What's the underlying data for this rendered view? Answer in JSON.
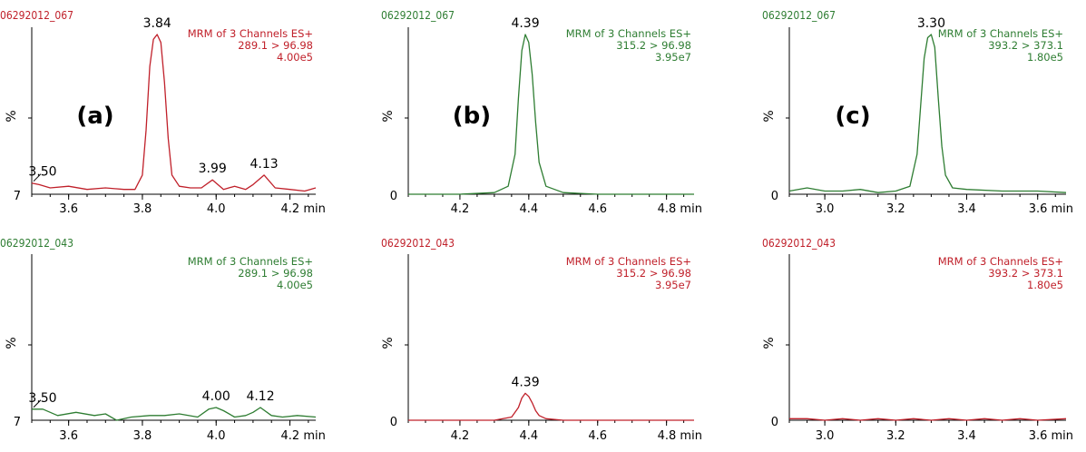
{
  "chart_data": [
    {
      "type": "line",
      "panel": "a",
      "row": "top",
      "panel_label": "(a)",
      "sample_id": "06292012_067",
      "color": "#c0202a",
      "info": [
        "MRM of 3 Channels ES+",
        "289.1 > 96.98",
        "4.00e5"
      ],
      "ylabel": "%",
      "y_axis_bottom_label": "7",
      "x_unit": "min",
      "xlim": [
        3.5,
        4.27
      ],
      "ylim": [
        0,
        100
      ],
      "xticks": [
        3.6,
        3.8,
        4.0,
        4.2
      ],
      "xtick_labels": [
        "3.6",
        "3.8",
        "4.0",
        "4.2 min"
      ],
      "x": [
        3.5,
        3.52,
        3.55,
        3.6,
        3.65,
        3.7,
        3.75,
        3.78,
        3.8,
        3.81,
        3.82,
        3.83,
        3.84,
        3.85,
        3.86,
        3.87,
        3.88,
        3.9,
        3.93,
        3.96,
        3.99,
        4.02,
        4.05,
        4.08,
        4.1,
        4.13,
        4.16,
        4.2,
        4.24,
        4.27
      ],
      "y": [
        7,
        6,
        4,
        5,
        3,
        4,
        3,
        3,
        12,
        40,
        80,
        97,
        100,
        95,
        70,
        35,
        12,
        5,
        4,
        4,
        9,
        3,
        5,
        3,
        6,
        12,
        4,
        3,
        2,
        4
      ],
      "peaks": [
        {
          "x": 3.5,
          "y": 7,
          "label": "3.50"
        },
        {
          "x": 3.84,
          "y": 100,
          "label": "3.84"
        },
        {
          "x": 3.99,
          "y": 9,
          "label": "3.99"
        },
        {
          "x": 4.13,
          "y": 12,
          "label": "4.13"
        }
      ]
    },
    {
      "type": "line",
      "panel": "b",
      "row": "top",
      "panel_label": "(b)",
      "sample_id": "06292012_067",
      "color": "#2e7d32",
      "info": [
        "MRM of 3 Channels ES+",
        "315.2 > 96.98",
        "3.95e7"
      ],
      "ylabel": "%",
      "y_axis_bottom_label": "0",
      "x_unit": "min",
      "xlim": [
        4.05,
        4.88
      ],
      "ylim": [
        0,
        100
      ],
      "xticks": [
        4.2,
        4.4,
        4.6,
        4.8
      ],
      "xtick_labels": [
        "4.2",
        "4.4",
        "4.6",
        "4.8 min"
      ],
      "x": [
        4.05,
        4.2,
        4.3,
        4.34,
        4.36,
        4.37,
        4.38,
        4.39,
        4.4,
        4.41,
        4.42,
        4.43,
        4.45,
        4.5,
        4.6,
        4.7,
        4.8,
        4.88
      ],
      "y": [
        0,
        0,
        1,
        5,
        25,
        60,
        90,
        100,
        95,
        75,
        45,
        20,
        5,
        1,
        0,
        0,
        0,
        0
      ],
      "peaks": [
        {
          "x": 4.39,
          "y": 100,
          "label": "4.39"
        }
      ]
    },
    {
      "type": "line",
      "panel": "c",
      "row": "top",
      "panel_label": "(c)",
      "sample_id": "06292012_067",
      "color": "#2e7d32",
      "info": [
        "MRM of 3 Channels ES+",
        "393.2 > 373.1",
        "1.80e5"
      ],
      "ylabel": "%",
      "y_axis_bottom_label": "0",
      "x_unit": "min",
      "xlim": [
        2.9,
        3.68
      ],
      "ylim": [
        0,
        100
      ],
      "xticks": [
        3.0,
        3.2,
        3.4,
        3.6
      ],
      "xtick_labels": [
        "3.0",
        "3.2",
        "3.4",
        "3.6 min"
      ],
      "x": [
        2.9,
        2.95,
        3.0,
        3.05,
        3.1,
        3.15,
        3.2,
        3.24,
        3.26,
        3.27,
        3.28,
        3.29,
        3.3,
        3.31,
        3.32,
        3.33,
        3.34,
        3.36,
        3.4,
        3.5,
        3.6,
        3.68
      ],
      "y": [
        2,
        4,
        2,
        2,
        3,
        1,
        2,
        5,
        25,
        55,
        85,
        98,
        100,
        92,
        60,
        30,
        12,
        4,
        3,
        2,
        2,
        1
      ],
      "peaks": [
        {
          "x": 3.3,
          "y": 100,
          "label": "3.30"
        }
      ]
    },
    {
      "type": "line",
      "panel": "a",
      "row": "bottom",
      "sample_id": "06292012_043",
      "color": "#2e7d32",
      "info": [
        "MRM of 3 Channels ES+",
        "289.1 > 96.98",
        "4.00e5"
      ],
      "ylabel": "%",
      "y_axis_bottom_label": "7",
      "x_unit": "min",
      "xlim": [
        3.5,
        4.27
      ],
      "ylim": [
        0,
        100
      ],
      "xticks": [
        3.6,
        3.8,
        4.0,
        4.2
      ],
      "xtick_labels": [
        "3.6",
        "3.8",
        "4.0",
        "4.2 min"
      ],
      "x": [
        3.5,
        3.53,
        3.57,
        3.62,
        3.67,
        3.7,
        3.73,
        3.77,
        3.82,
        3.86,
        3.9,
        3.95,
        3.98,
        4.0,
        4.02,
        4.05,
        4.08,
        4.1,
        4.12,
        4.15,
        4.18,
        4.22,
        4.27
      ],
      "y": [
        7,
        7,
        3,
        5,
        3,
        4,
        0,
        2,
        3,
        3,
        4,
        2,
        7,
        8,
        6,
        2,
        3,
        5,
        8,
        3,
        2,
        3,
        2
      ],
      "peaks": [
        {
          "x": 3.5,
          "y": 7,
          "label": "3.50"
        },
        {
          "x": 4.0,
          "y": 8,
          "label": "4.00"
        },
        {
          "x": 4.12,
          "y": 8,
          "label": "4.12"
        }
      ]
    },
    {
      "type": "line",
      "panel": "b",
      "row": "bottom",
      "sample_id": "06292012_043",
      "color": "#c0202a",
      "info": [
        "MRM of 3 Channels ES+",
        "315.2 > 96.98",
        "3.95e7"
      ],
      "ylabel": "%",
      "y_axis_bottom_label": "0",
      "x_unit": "min",
      "xlim": [
        4.05,
        4.88
      ],
      "ylim": [
        0,
        100
      ],
      "xticks": [
        4.2,
        4.4,
        4.6,
        4.8
      ],
      "xtick_labels": [
        "4.2",
        "4.4",
        "4.6",
        "4.8 min"
      ],
      "x": [
        4.05,
        4.2,
        4.3,
        4.35,
        4.37,
        4.38,
        4.39,
        4.4,
        4.41,
        4.42,
        4.43,
        4.45,
        4.5,
        4.6,
        4.7,
        4.8,
        4.88
      ],
      "y": [
        0,
        0,
        0,
        2,
        8,
        14,
        17,
        15,
        11,
        6,
        3,
        1,
        0,
        0,
        0,
        0,
        0
      ],
      "peaks": [
        {
          "x": 4.39,
          "y": 17,
          "label": "4.39"
        }
      ]
    },
    {
      "type": "line",
      "panel": "c",
      "row": "bottom",
      "sample_id": "06292012_043",
      "color": "#c0202a",
      "info": [
        "MRM of 3 Channels ES+",
        "393.2 > 373.1",
        "1.80e5"
      ],
      "ylabel": "%",
      "y_axis_bottom_label": "0",
      "x_unit": "min",
      "xlim": [
        2.9,
        3.68
      ],
      "ylim": [
        0,
        100
      ],
      "xticks": [
        3.0,
        3.2,
        3.4,
        3.6
      ],
      "xtick_labels": [
        "3.0",
        "3.2",
        "3.4",
        "3.6 min"
      ],
      "x": [
        2.9,
        2.95,
        3.0,
        3.05,
        3.1,
        3.15,
        3.2,
        3.25,
        3.3,
        3.35,
        3.4,
        3.45,
        3.5,
        3.55,
        3.6,
        3.68
      ],
      "y": [
        1,
        1,
        0,
        1,
        0,
        1,
        0,
        1,
        0,
        1,
        0,
        1,
        0,
        1,
        0,
        1
      ],
      "peaks": []
    }
  ]
}
